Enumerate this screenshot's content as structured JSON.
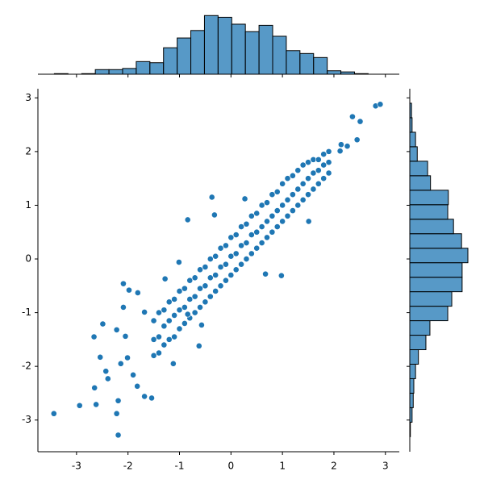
{
  "chart_data": [
    {
      "type": "scatter",
      "color": "#1f77b4",
      "x": [
        -1.5,
        -1.5,
        -1.5,
        -1.4,
        -1.4,
        -1.4,
        -1.3,
        -1.3,
        -1.3,
        -1.2,
        -1.2,
        -1.2,
        -1.1,
        -1.1,
        -1.1,
        -1.0,
        -1.0,
        -1.0,
        -0.9,
        -0.9,
        -0.9,
        -0.8,
        -0.8,
        -0.8,
        -0.7,
        -0.7,
        -0.7,
        -0.6,
        -0.6,
        -0.6,
        -0.5,
        -0.5,
        -0.5,
        -0.4,
        -0.4,
        -0.4,
        -0.3,
        -0.3,
        -0.3,
        -0.2,
        -0.2,
        -0.2,
        -0.1,
        -0.1,
        -0.1,
        0.0,
        0.0,
        0.0,
        0.1,
        0.1,
        0.1,
        0.2,
        0.2,
        0.2,
        0.3,
        0.3,
        0.3,
        0.4,
        0.4,
        0.4,
        0.5,
        0.5,
        0.5,
        0.6,
        0.6,
        0.6,
        0.7,
        0.7,
        0.7,
        0.8,
        0.8,
        0.8,
        0.9,
        0.9,
        0.9,
        1.0,
        1.0,
        1.0,
        1.1,
        1.1,
        1.1,
        1.2,
        1.2,
        1.2,
        1.3,
        1.3,
        1.3,
        1.4,
        1.4,
        1.4,
        1.5,
        1.5,
        1.5,
        1.6,
        1.6,
        1.6,
        1.7,
        1.7,
        1.7,
        1.8,
        1.8,
        1.8,
        1.9,
        1.9,
        1.9,
        -3.44,
        -2.94,
        -2.62,
        -2.19,
        -2.19,
        -2.22,
        -2.65,
        -2.54,
        -2.49,
        -2.66,
        -2.09,
        -2.09,
        -1.98,
        -1.81,
        -1.68,
        -2.22,
        -2.43,
        -2.39,
        -2.05,
        -2.01,
        -1.9,
        -1.68,
        -1.54,
        -1.82,
        -2.14,
        -1.12,
        -0.62,
        -0.37,
        -0.84,
        0.27,
        1.51,
        2.36,
        2.45,
        2.51,
        2.81,
        2.9,
        2.14,
        2.26,
        2.12,
        0.98,
        0.67,
        -0.57,
        -0.84,
        -1.01,
        -1.28,
        -0.32
      ],
      "y": [
        -1.15,
        -1.5,
        -1.8,
        -1.0,
        -1.45,
        -1.75,
        -0.95,
        -1.25,
        -1.6,
        -0.8,
        -1.15,
        -1.5,
        -0.75,
        -1.05,
        -1.45,
        -0.6,
        -0.95,
        -1.3,
        -0.55,
        -0.9,
        -1.2,
        -0.4,
        -0.75,
        -1.1,
        -0.35,
        -0.7,
        -1.0,
        -0.2,
        -0.55,
        -0.9,
        -0.15,
        -0.5,
        -0.8,
        0.0,
        -0.35,
        -0.7,
        0.05,
        -0.3,
        -0.6,
        0.2,
        -0.15,
        -0.5,
        0.25,
        -0.1,
        -0.4,
        0.4,
        0.05,
        -0.3,
        0.45,
        0.1,
        -0.2,
        0.6,
        0.25,
        -0.1,
        0.65,
        0.3,
        0.0,
        0.8,
        0.45,
        0.1,
        0.85,
        0.5,
        0.2,
        1.0,
        0.6,
        0.3,
        1.05,
        0.7,
        0.4,
        1.2,
        0.8,
        0.5,
        1.25,
        0.9,
        0.6,
        1.4,
        1.0,
        0.7,
        1.5,
        1.1,
        0.8,
        1.55,
        1.2,
        0.9,
        1.65,
        1.3,
        1.0,
        1.75,
        1.4,
        1.1,
        1.8,
        1.5,
        1.2,
        1.85,
        1.6,
        1.3,
        1.85,
        1.65,
        1.4,
        1.95,
        1.75,
        1.5,
        2.0,
        1.8,
        1.6,
        -2.88,
        -2.73,
        -2.71,
        -3.28,
        -2.64,
        -2.88,
        -2.4,
        -1.83,
        -1.21,
        -1.45,
        -0.9,
        -0.46,
        -0.58,
        -0.63,
        -0.99,
        -1.32,
        -2.09,
        -2.23,
        -1.44,
        -1.84,
        -2.16,
        -2.56,
        -2.59,
        -2.37,
        -1.95,
        -1.95,
        -1.62,
        1.15,
        0.73,
        1.12,
        0.7,
        2.65,
        2.22,
        2.56,
        2.85,
        2.88,
        2.13,
        2.1,
        2.01,
        -0.31,
        -0.28,
        -1.23,
        -1.03,
        -0.06,
        -0.37,
        0.82
      ],
      "xlim": [
        -3.75,
        3.27
      ],
      "ylim": [
        -3.59,
        3.17
      ],
      "xticks": [
        -3,
        -2,
        -1,
        0,
        1,
        2,
        3
      ],
      "yticks": [
        -3,
        -2,
        -1,
        0,
        1,
        2,
        3
      ]
    },
    {
      "type": "histogram",
      "orientation": "vertical",
      "color": "#1f77b4",
      "bins": [
        -3.43,
        -3.165,
        -2.9,
        -2.635,
        -2.37,
        -2.105,
        -1.84,
        -1.575,
        -1.31,
        -1.045,
        -0.78,
        -0.515,
        -0.25,
        0.015,
        0.28,
        0.545,
        0.81,
        1.075,
        1.34,
        1.605,
        1.87,
        2.135,
        2.4,
        2.665,
        2.93
      ],
      "values": [
        1,
        0,
        1,
        8,
        8,
        10,
        22,
        20,
        46,
        63,
        76,
        102,
        99,
        87,
        74,
        85,
        66,
        41,
        36,
        29,
        6,
        4,
        1,
        0
      ],
      "ylim": [
        0,
        108
      ]
    },
    {
      "type": "histogram",
      "orientation": "horizontal",
      "color": "#1f77b4",
      "bins": [
        -3.31,
        -3.04,
        -2.77,
        -2.5,
        -2.23,
        -1.96,
        -1.69,
        -1.42,
        -1.15,
        -0.88,
        -0.61,
        -0.34,
        -0.07,
        0.2,
        0.47,
        0.74,
        1.01,
        1.28,
        1.55,
        1.82,
        2.09,
        2.36,
        2.63,
        2.9
      ],
      "values": [
        1,
        4,
        6,
        7,
        10,
        15,
        28,
        35,
        66,
        73,
        91,
        91,
        101,
        90,
        76,
        66,
        67,
        36,
        31,
        13,
        10,
        4,
        3
      ],
      "xlim": [
        0,
        108
      ]
    }
  ]
}
